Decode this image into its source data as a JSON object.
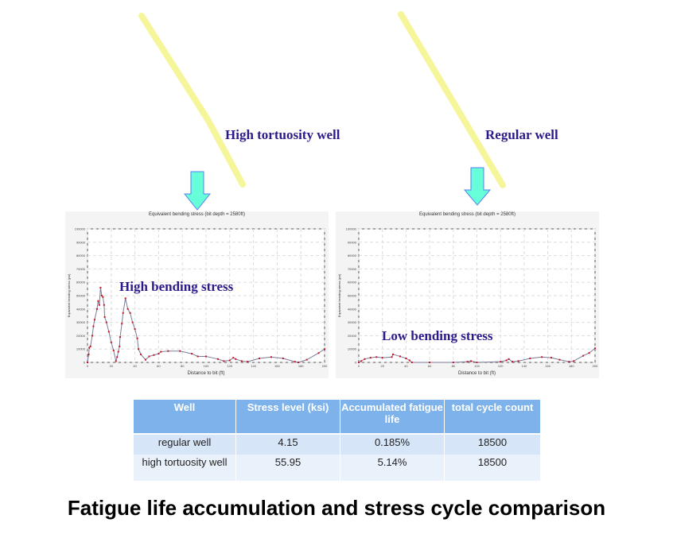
{
  "labels": {
    "high_tortuosity": "High tortuosity well",
    "regular": "Regular well",
    "high_stress": "High bending stress",
    "low_stress": "Low bending stress"
  },
  "colors": {
    "well_path": "#f5f59a",
    "arrow_fill": "#66ffd9",
    "arrow_stroke": "#5a7ef0",
    "label": "#2d1a8a",
    "series_line": "#7a7a9a",
    "series_marker": "#cc1122",
    "table_header": "#7eb2ea"
  },
  "chart_data": [
    {
      "type": "line",
      "title": "Equivalent bending stress (bit depth = 2580ft)",
      "xlabel": "Distance to bit (ft)",
      "ylabel": "Equivalent bending stress (psi)",
      "xlim": [
        0,
        200
      ],
      "ylim": [
        0,
        100000
      ],
      "xticks": [
        0,
        20,
        40,
        60,
        80,
        100,
        120,
        140,
        160,
        180,
        200
      ],
      "yticks": [
        0,
        10000,
        20000,
        30000,
        40000,
        50000,
        60000,
        70000,
        80000,
        90000,
        100000
      ],
      "grid": true,
      "x": [
        0,
        1,
        1.5,
        2.5,
        4,
        5,
        6,
        8,
        9,
        10,
        11,
        12,
        13,
        14,
        14.5,
        16,
        18,
        20,
        22,
        24,
        25,
        26,
        27,
        27.5,
        29,
        30,
        32,
        34,
        36,
        38,
        40,
        42,
        43,
        45,
        49,
        52,
        56,
        60,
        62,
        68,
        78,
        88,
        93,
        100,
        110,
        115,
        120,
        123,
        125,
        130,
        135,
        145,
        155,
        165,
        175,
        178,
        185,
        195,
        200
      ],
      "y": [
        0,
        6000,
        11000,
        12000,
        20000,
        27000,
        32000,
        40000,
        46000,
        43000,
        56000,
        50000,
        49000,
        43000,
        34000,
        30000,
        23000,
        15000,
        9000,
        1000,
        4000,
        8000,
        12000,
        19000,
        29000,
        37000,
        48000,
        40000,
        37000,
        30000,
        25000,
        18000,
        10000,
        6000,
        2000,
        4500,
        5500,
        6500,
        8000,
        8500,
        8500,
        6500,
        4500,
        4500,
        2500,
        1000,
        1500,
        3500,
        2500,
        1000,
        500,
        3000,
        4000,
        3000,
        500,
        0,
        2000,
        7000,
        10000
      ]
    },
    {
      "type": "line",
      "title": "Equivalent bending stress (bit depth = 2580ft)",
      "xlabel": "Distance to bit (ft)",
      "ylabel": "Equivalent bending stress (psi)",
      "xlim": [
        0,
        200
      ],
      "ylim": [
        0,
        100000
      ],
      "xticks": [
        0,
        20,
        40,
        60,
        80,
        100,
        120,
        140,
        160,
        180,
        200
      ],
      "yticks": [
        0,
        10000,
        20000,
        30000,
        40000,
        50000,
        60000,
        70000,
        80000,
        90000,
        100000
      ],
      "grid": true,
      "x": [
        0,
        2,
        5,
        10,
        15,
        20,
        28,
        29,
        35,
        40,
        43,
        45,
        60,
        80,
        92,
        95,
        100,
        120,
        125,
        127,
        130,
        135,
        145,
        155,
        163,
        170,
        178,
        182,
        190,
        195,
        200
      ],
      "y": [
        0,
        1000,
        2500,
        3500,
        4000,
        3500,
        4000,
        6000,
        4500,
        3000,
        1500,
        0,
        0,
        0,
        500,
        1000,
        0,
        500,
        1500,
        2500,
        500,
        1000,
        3000,
        4000,
        3500,
        2000,
        500,
        1000,
        5000,
        7000,
        10500
      ]
    }
  ],
  "table": {
    "headers": [
      "Well",
      "Stress level (ksi)",
      "Accumulated fatigue life",
      "total cycle count"
    ],
    "rows": [
      [
        "regular well",
        "4.15",
        "0.185%",
        "18500"
      ],
      [
        "high tortuosity well",
        "55.95",
        "5.14%",
        "18500"
      ]
    ]
  },
  "title": "Fatigue life accumulation and stress cycle comparison"
}
